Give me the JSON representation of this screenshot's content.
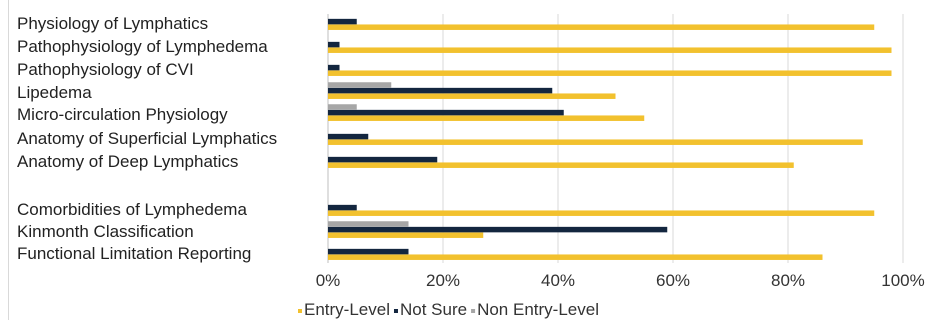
{
  "colors": {
    "entry_level": "#f2c12e",
    "not_sure": "#13263f",
    "non_entry_level": "#a6a6a6",
    "gridline": "#d9d9d9",
    "axis": "#bfbfbf"
  },
  "chart_data": {
    "type": "bar",
    "orientation": "horizontal",
    "title": "",
    "xlabel": "",
    "ylabel": "",
    "xlim": [
      0,
      100
    ],
    "x_ticks": [
      "0%",
      "20%",
      "40%",
      "60%",
      "80%",
      "100%"
    ],
    "grid": true,
    "legend_position": "bottom",
    "categories": [
      "Physiology of Lymphatics",
      "Pathophysiology of Lymphedema",
      "Pathophysiology of CVI",
      "Lipedema",
      "Micro-circulation Physiology",
      "Anatomy of Superficial Lymphatics",
      "Anatomy of Deep Lymphatics",
      "",
      "Comorbidities of Lymphedema",
      "Kinmonth Classification",
      "Functional Limitation Reporting"
    ],
    "series": [
      {
        "name": "Entry-Level",
        "values": [
          95,
          98,
          98,
          50,
          55,
          93,
          81,
          null,
          95,
          27,
          86
        ]
      },
      {
        "name": "Not Sure",
        "values": [
          5,
          2,
          2,
          39,
          41,
          7,
          19,
          null,
          5,
          59,
          14
        ]
      },
      {
        "name": "Non Entry-Level",
        "values": [
          0,
          0,
          0,
          11,
          5,
          0,
          0,
          null,
          0,
          14,
          0
        ]
      }
    ]
  }
}
